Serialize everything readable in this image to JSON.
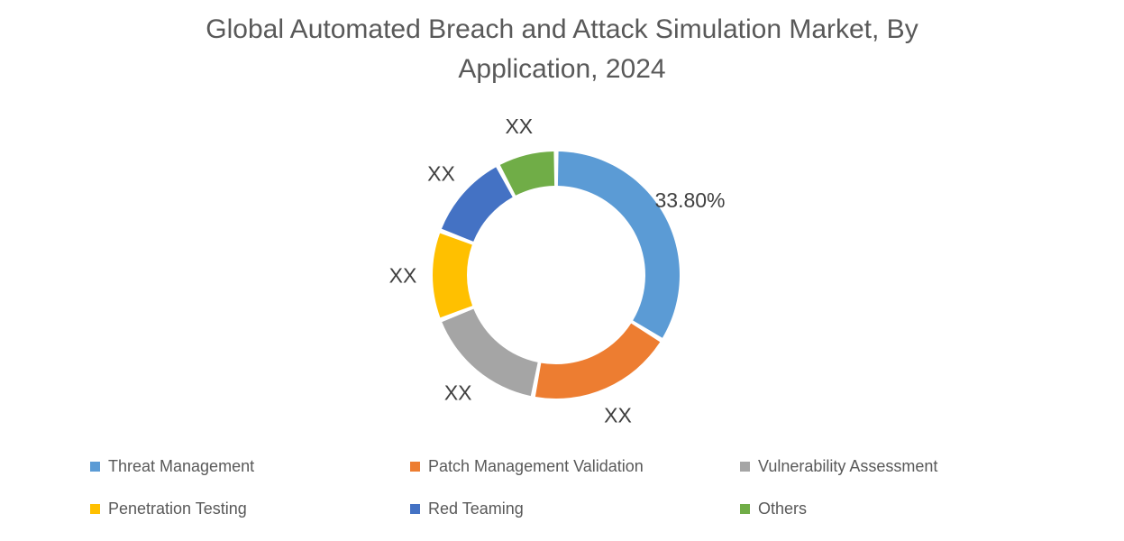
{
  "title": {
    "line1": "Global Automated Breach and Attack Simulation Market, By",
    "line2": "Application, 2024"
  },
  "colors": {
    "title_text": "#595959",
    "data_label_text": "#404040",
    "legend_text": "#595959",
    "background": "#ffffff"
  },
  "chart_data": {
    "type": "pie",
    "subtype": "donut",
    "title": "Global Automated Breach and Attack Simulation Market, By Application, 2024",
    "start_angle_deg": 0,
    "direction": "clockwise",
    "donut_hole_ratio": 0.72,
    "legend_position": "bottom",
    "grid": false,
    "slices": [
      {
        "label": "Threat Management",
        "color": "#5B9BD5",
        "data_label": "33.80%",
        "percent_est": 33.8
      },
      {
        "label": "Patch Management Validation",
        "color": "#ED7D31",
        "data_label": "XX",
        "percent_est": 19.2
      },
      {
        "label": "Vulnerability Assessment",
        "color": "#A5A5A5",
        "data_label": "XX",
        "percent_est": 16.1
      },
      {
        "label": "Penetration Testing",
        "color": "#FFC000",
        "data_label": "XX",
        "percent_est": 11.7
      },
      {
        "label": "Red Teaming",
        "color": "#4472C4",
        "data_label": "XX",
        "percent_est": 11.4
      },
      {
        "label": "Others",
        "color": "#70AD47",
        "data_label": "XX",
        "percent_est": 7.8
      }
    ]
  }
}
